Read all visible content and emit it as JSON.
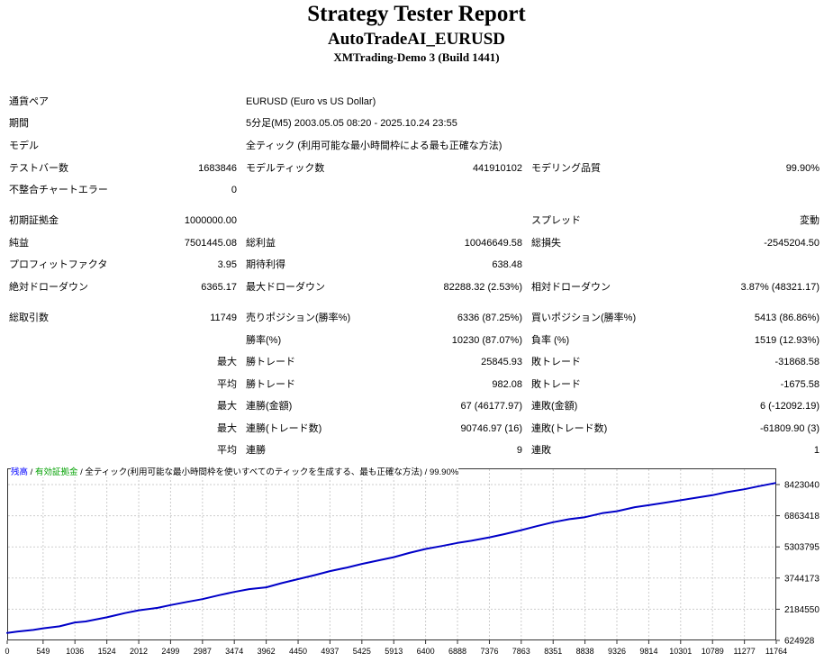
{
  "header": {
    "title": "Strategy Tester Report",
    "expert_name": "AutoTradeAI_EURUSD",
    "server": "XMTrading-Demo 3 (Build 1441)"
  },
  "stats": {
    "rows": [
      {
        "cells": [
          "通貨ペア",
          "",
          "EURUSD (Euro vs US Dollar)",
          "",
          "",
          ""
        ],
        "span3": true
      },
      {
        "cells": [
          "期間",
          "",
          "5分足(M5) 2003.05.05 08:20 - 2025.10.24 23:55",
          "",
          "",
          ""
        ],
        "span3": true
      },
      {
        "cells": [
          "モデル",
          "",
          "全ティック (利用可能な最小時間枠による最も正確な方法)",
          "",
          "",
          ""
        ],
        "span3": true
      },
      {
        "cells": [
          "テストバー数",
          "1683846",
          "モデルティック数",
          "441910102",
          "モデリング品質",
          "99.90%"
        ]
      },
      {
        "cells": [
          "不整合チャートエラー",
          "0",
          "",
          "",
          "",
          ""
        ]
      },
      {
        "gap": true
      },
      {
        "cells": [
          "初期証拠金",
          "1000000.00",
          "",
          "",
          "スプレッド",
          "変動"
        ]
      },
      {
        "cells": [
          "純益",
          "7501445.08",
          "総利益",
          "10046649.58",
          "総損失",
          "-2545204.50"
        ]
      },
      {
        "cells": [
          "プロフィットファクタ",
          "3.95",
          "期待利得",
          "638.48",
          "",
          ""
        ]
      },
      {
        "cells": [
          "絶対ドローダウン",
          "6365.17",
          "最大ドローダウン",
          "82288.32 (2.53%)",
          "相対ドローダウン",
          "3.87% (48321.17)"
        ]
      },
      {
        "gap": true
      },
      {
        "cells": [
          "総取引数",
          "11749",
          "売りポジション(勝率%)",
          "6336 (87.25%)",
          "買いポジション(勝率%)",
          "5413 (86.86%)"
        ]
      },
      {
        "cells": [
          "",
          "",
          "勝率(%)",
          "10230 (87.07%)",
          "負率 (%)",
          "1519 (12.93%)"
        ]
      },
      {
        "cells": [
          "",
          "最大",
          "勝トレード",
          "25845.93",
          "敗トレード",
          "-31868.58"
        ]
      },
      {
        "cells": [
          "",
          "平均",
          "勝トレード",
          "982.08",
          "敗トレード",
          "-1675.58"
        ]
      },
      {
        "cells": [
          "",
          "最大",
          "連勝(金額)",
          "67 (46177.97)",
          "連敗(金額)",
          "6 (-12092.19)"
        ]
      },
      {
        "cells": [
          "",
          "最大",
          "連勝(トレード数)",
          "90746.97 (16)",
          "連敗(トレード数)",
          "-61809.90 (3)"
        ]
      },
      {
        "cells": [
          "",
          "平均",
          "連勝",
          "9",
          "連敗",
          "1"
        ]
      }
    ]
  },
  "chart_data": {
    "type": "line",
    "legend": {
      "balance": "残高",
      "equity": "有効証拠金",
      "sep": " / ",
      "model_note": "全ティック(利用可能な最小時間枠を使いすべてのティックを生成する、最も正確な方法)",
      "quality": "99.90%"
    },
    "x_ticks": [
      0,
      549,
      1036,
      1524,
      2012,
      2499,
      2987,
      3474,
      3962,
      4450,
      4937,
      5425,
      5913,
      6400,
      6888,
      7376,
      7863,
      8351,
      8838,
      9326,
      9814,
      10301,
      10789,
      11277,
      11764
    ],
    "y_ticks": [
      8423040,
      6863418,
      5303795,
      3744173,
      2184550,
      624928
    ],
    "xlim": [
      0,
      11764
    ],
    "grid": "dashed",
    "legend_position": "top-left",
    "series": [
      {
        "name": "残高",
        "color": "#0000c8",
        "points": [
          [
            0,
            1000000
          ],
          [
            150,
            1060000
          ],
          [
            400,
            1150000
          ],
          [
            549,
            1230000
          ],
          [
            800,
            1330000
          ],
          [
            1036,
            1520000
          ],
          [
            1200,
            1570000
          ],
          [
            1524,
            1780000
          ],
          [
            1800,
            1990000
          ],
          [
            2012,
            2130000
          ],
          [
            2300,
            2250000
          ],
          [
            2499,
            2390000
          ],
          [
            2750,
            2550000
          ],
          [
            2987,
            2690000
          ],
          [
            3250,
            2890000
          ],
          [
            3474,
            3050000
          ],
          [
            3700,
            3190000
          ],
          [
            3962,
            3280000
          ],
          [
            4200,
            3490000
          ],
          [
            4450,
            3690000
          ],
          [
            4700,
            3890000
          ],
          [
            4937,
            4090000
          ],
          [
            5200,
            4270000
          ],
          [
            5425,
            4450000
          ],
          [
            5700,
            4640000
          ],
          [
            5913,
            4790000
          ],
          [
            6150,
            5000000
          ],
          [
            6400,
            5200000
          ],
          [
            6650,
            5350000
          ],
          [
            6888,
            5500000
          ],
          [
            7100,
            5610000
          ],
          [
            7376,
            5780000
          ],
          [
            7600,
            5940000
          ],
          [
            7863,
            6140000
          ],
          [
            8100,
            6340000
          ],
          [
            8351,
            6540000
          ],
          [
            8600,
            6690000
          ],
          [
            8838,
            6790000
          ],
          [
            9100,
            6990000
          ],
          [
            9326,
            7090000
          ],
          [
            9600,
            7290000
          ],
          [
            9814,
            7390000
          ],
          [
            10050,
            7510000
          ],
          [
            10301,
            7640000
          ],
          [
            10550,
            7770000
          ],
          [
            10789,
            7890000
          ],
          [
            11000,
            8040000
          ],
          [
            11277,
            8190000
          ],
          [
            11500,
            8340000
          ],
          [
            11749,
            8501445
          ]
        ]
      }
    ]
  },
  "colors": {
    "balance_line": "#0000c8",
    "legend_balance": "#0000ff",
    "legend_equity": "#00a000",
    "grid": "#cdcdcd",
    "plot_border": "#333333",
    "text": "#000000"
  }
}
